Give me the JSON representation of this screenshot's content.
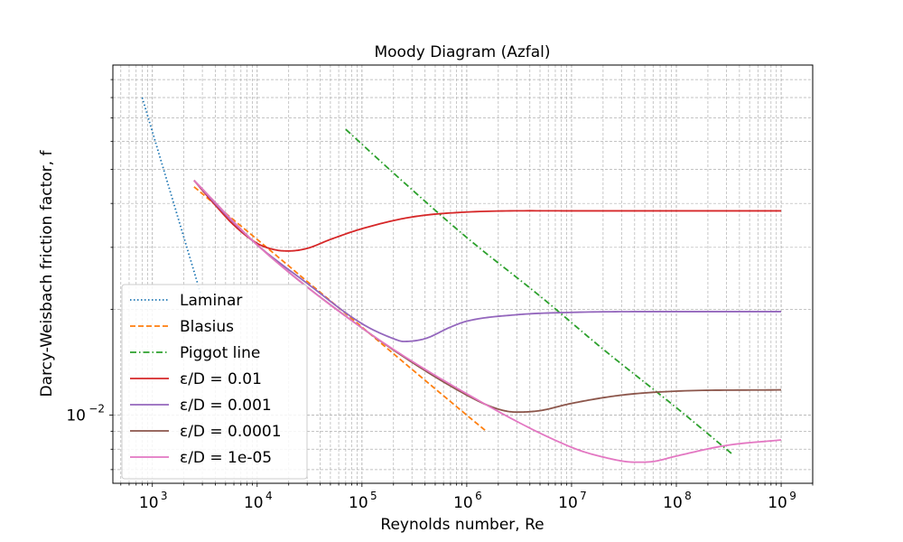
{
  "chart_data": {
    "type": "line",
    "title": "Moody Diagram (Azfal)",
    "xlabel": "Reynolds number, Re",
    "ylabel": "Darcy-Weisbach friction factor, f",
    "xscale": "log",
    "yscale": "log",
    "xlim": [
      420,
      2000000000
    ],
    "ylim": [
      0.0064,
      0.099
    ],
    "grid": "both (major and minor), dashed",
    "legend_position": "lower-left",
    "x_tick_labels": [
      {
        "value": 1000,
        "base": "10",
        "exp": "3"
      },
      {
        "value": 10000,
        "base": "10",
        "exp": "4"
      },
      {
        "value": 100000,
        "base": "10",
        "exp": "5"
      },
      {
        "value": 1000000,
        "base": "10",
        "exp": "6"
      },
      {
        "value": 10000000,
        "base": "10",
        "exp": "7"
      },
      {
        "value": 100000000,
        "base": "10",
        "exp": "8"
      },
      {
        "value": 1000000000,
        "base": "10",
        "exp": "9"
      }
    ],
    "y_tick_labels": [
      {
        "value": 0.01,
        "base": "10",
        "exp": "−2"
      }
    ],
    "series": [
      {
        "name": "Laminar",
        "color": "#1f77b4",
        "style": "dotted",
        "x": [
          800,
          1000,
          1300,
          1700,
          2200,
          2900
        ],
        "y": [
          0.08,
          0.064,
          0.04923,
          0.03765,
          0.02909,
          0.02207
        ]
      },
      {
        "name": "Blasius",
        "color": "#ff7f0e",
        "style": "dashed",
        "x": [
          2500,
          5000,
          10000,
          30000,
          100000,
          300000,
          1000000,
          1500000
        ],
        "y": [
          0.0446,
          0.0375,
          0.0316,
          0.024,
          0.0178,
          0.0135,
          0.01,
          0.00905
        ]
      },
      {
        "name": "Piggot line",
        "color": "#2ca02c",
        "style": "dashdot",
        "x": [
          70000,
          200000,
          1000000,
          5000000,
          20000000,
          100000000,
          350000000
        ],
        "y": [
          0.065,
          0.0488,
          0.032,
          0.0218,
          0.0154,
          0.0105,
          0.0077
        ]
      },
      {
        "name": "ε/D = 0.01",
        "color": "#d62728",
        "style": "solid",
        "x": [
          2500,
          4000,
          6000,
          10000,
          15000,
          20000,
          30000,
          50000,
          100000,
          300000,
          1000000,
          10000000,
          100000000,
          1000000000
        ],
        "y": [
          0.0465,
          0.0395,
          0.0347,
          0.0308,
          0.0295,
          0.0293,
          0.0298,
          0.0316,
          0.0339,
          0.0366,
          0.0378,
          0.0381,
          0.0381,
          0.0381
        ]
      },
      {
        "name": "ε/D = 0.001",
        "color": "#9467bd",
        "style": "solid",
        "x": [
          2500,
          5000,
          10000,
          30000,
          100000,
          200000,
          250000,
          400000,
          700000,
          1000000,
          3000000,
          10000000,
          100000000,
          1000000000
        ],
        "y": [
          0.0465,
          0.0372,
          0.0305,
          0.0237,
          0.0182,
          0.0165,
          0.0162,
          0.0165,
          0.0178,
          0.0185,
          0.0193,
          0.0196,
          0.0197,
          0.0197
        ]
      },
      {
        "name": "ε/D = 0.0001",
        "color": "#8c564b",
        "style": "solid",
        "x": [
          2500,
          10000,
          100000,
          1000000,
          2000000,
          3000000,
          5000000,
          10000000,
          30000000,
          100000000,
          1000000000
        ],
        "y": [
          0.0465,
          0.0305,
          0.0177,
          0.0114,
          0.0104,
          0.0102,
          0.0103,
          0.0108,
          0.0114,
          0.0117,
          0.0118
        ]
      },
      {
        "name": "ε/D = 1e-05",
        "color": "#e377c2",
        "style": "solid",
        "x": [
          2500,
          10000,
          100000,
          1000000,
          10000000,
          20000000,
          40000000,
          60000000,
          100000000,
          300000000,
          1000000000
        ],
        "y": [
          0.0465,
          0.0305,
          0.0177,
          0.0115,
          0.0081,
          0.0076,
          0.00735,
          0.00738,
          0.00765,
          0.0082,
          0.0085
        ]
      }
    ]
  }
}
